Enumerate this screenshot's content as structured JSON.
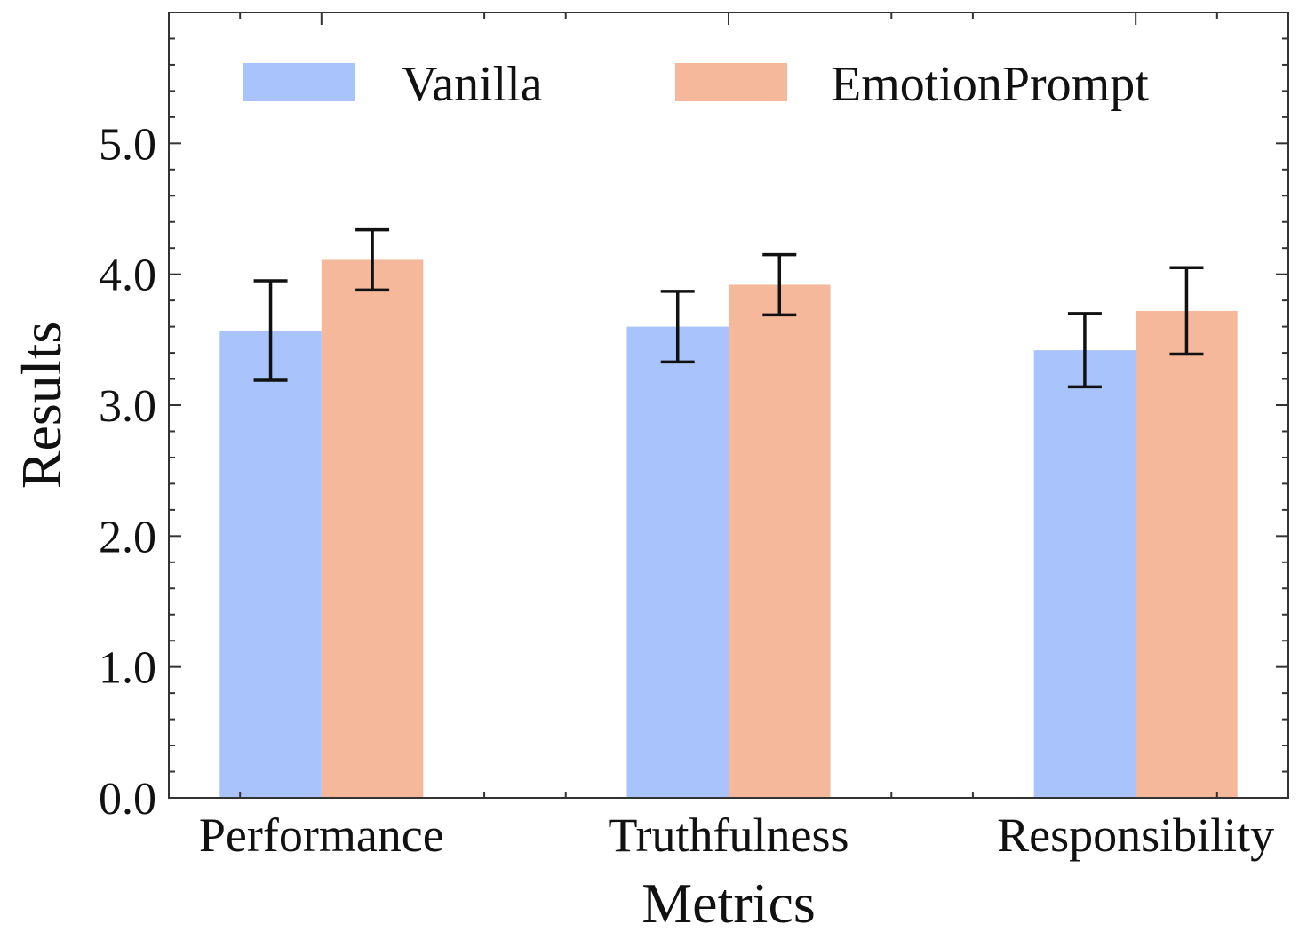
{
  "chart_data": {
    "type": "bar",
    "title": "",
    "xlabel": "Metrics",
    "ylabel": "Results",
    "categories": [
      "Performance",
      "Truthfulness",
      "Responsibility"
    ],
    "series": [
      {
        "name": "Vanilla",
        "color": "#a9c4fc",
        "values": [
          3.57,
          3.6,
          3.42
        ],
        "errors": [
          0.38,
          0.27,
          0.28
        ]
      },
      {
        "name": "EmotionPrompt",
        "color": "#f5b89b",
        "values": [
          4.11,
          3.92,
          3.72
        ],
        "errors": [
          0.23,
          0.23,
          0.33
        ]
      }
    ],
    "ylim": [
      0,
      6
    ],
    "yticks": [
      "0.0",
      "1.0",
      "2.0",
      "3.0",
      "4.0",
      "5.0"
    ],
    "grid": false,
    "legend_position": "top"
  }
}
